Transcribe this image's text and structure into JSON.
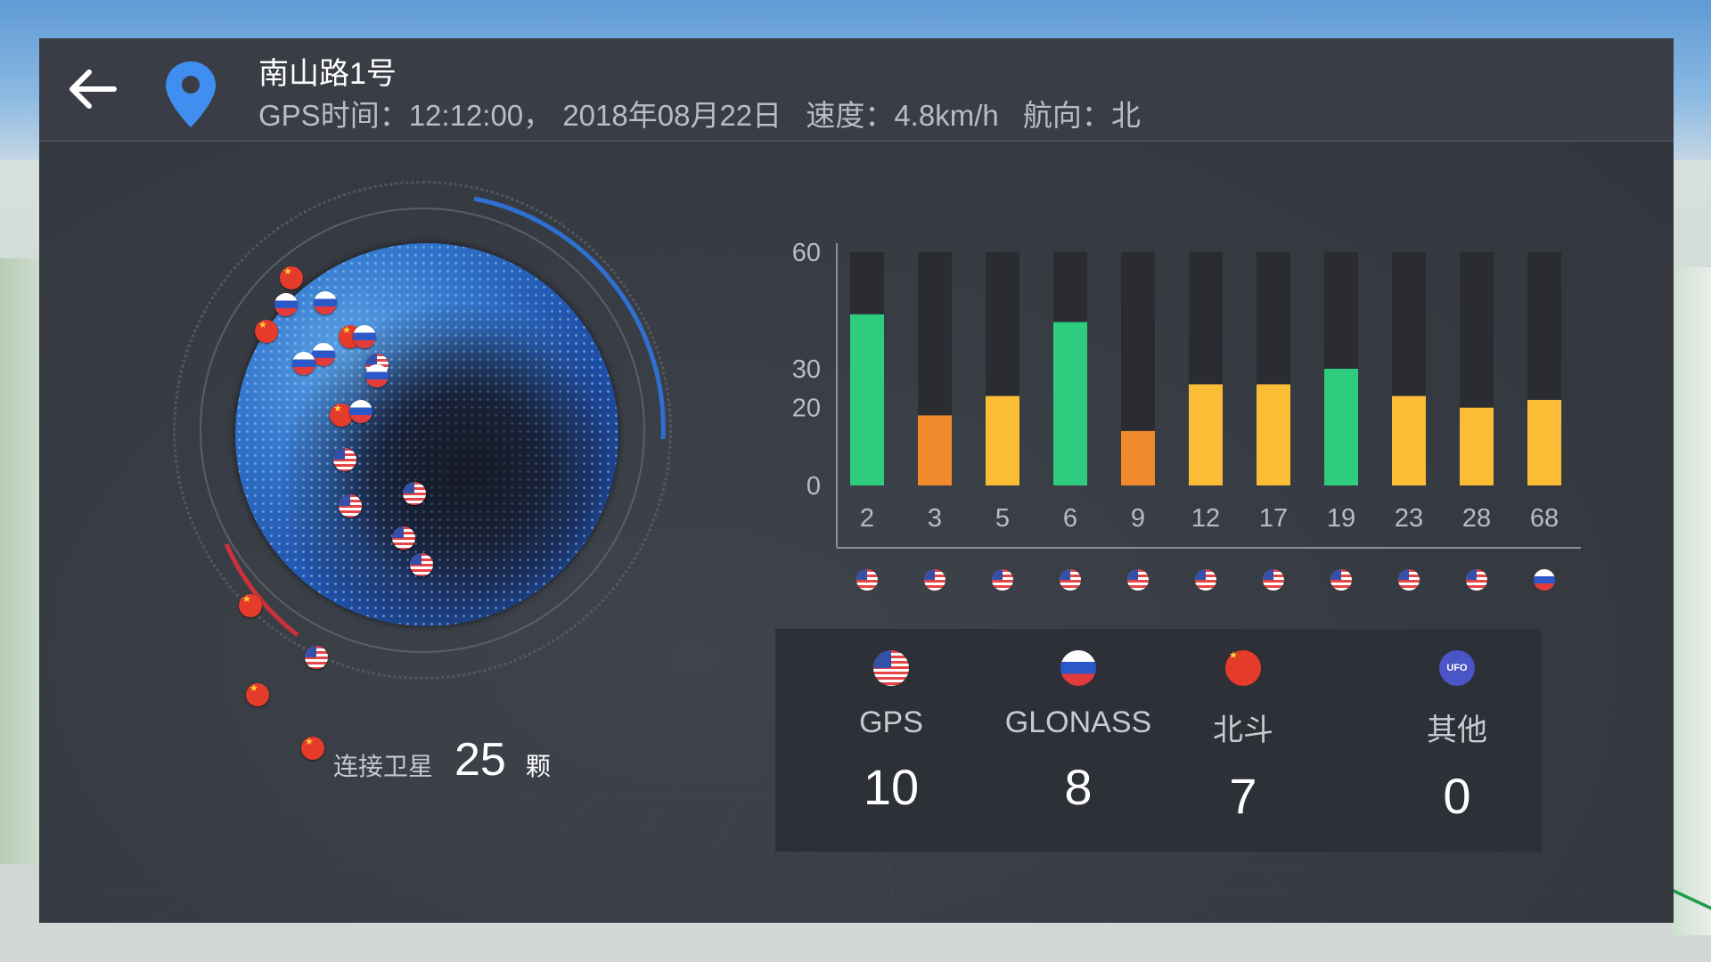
{
  "header": {
    "title": "南山路1号",
    "gps_time": "GPS时间：12:12:00，",
    "date": "2018年08月22日",
    "speed": "速度：4.8km/h",
    "heading": "航向：北"
  },
  "globe": {
    "connected_label": "连接卫星",
    "connected_count": "25",
    "connected_unit": "颗"
  },
  "chart_data": {
    "type": "bar",
    "categories": [
      "2",
      "3",
      "5",
      "6",
      "9",
      "12",
      "17",
      "19",
      "23",
      "28",
      "68"
    ],
    "values": [
      44,
      18,
      23,
      42,
      14,
      26,
      26,
      30,
      23,
      20,
      22
    ],
    "ylim": [
      0,
      60
    ],
    "yticks": [
      "60",
      "30",
      "20",
      "0"
    ],
    "bar_colors": [
      "#2ecc7e",
      "#f08a2c",
      "#fbbd35",
      "#2ecc7e",
      "#f08a2c",
      "#fbbd35",
      "#fbbd35",
      "#2ecc7e",
      "#fbbd35",
      "#fbbd35",
      "#fbbd35"
    ],
    "systems": [
      "us",
      "us",
      "us",
      "us",
      "us",
      "us",
      "us",
      "us",
      "us",
      "us",
      "ru"
    ]
  },
  "stats": [
    {
      "icon": "us-flag-icon",
      "label": "GPS",
      "count": "10"
    },
    {
      "icon": "russia-flag-icon",
      "label": "GLONASS",
      "count": "8"
    },
    {
      "icon": "china-flag-icon",
      "label": "北斗",
      "count": "7"
    },
    {
      "icon": "ufo-icon",
      "label": "其他",
      "count": "0"
    }
  ],
  "ufo_text": "UFO"
}
